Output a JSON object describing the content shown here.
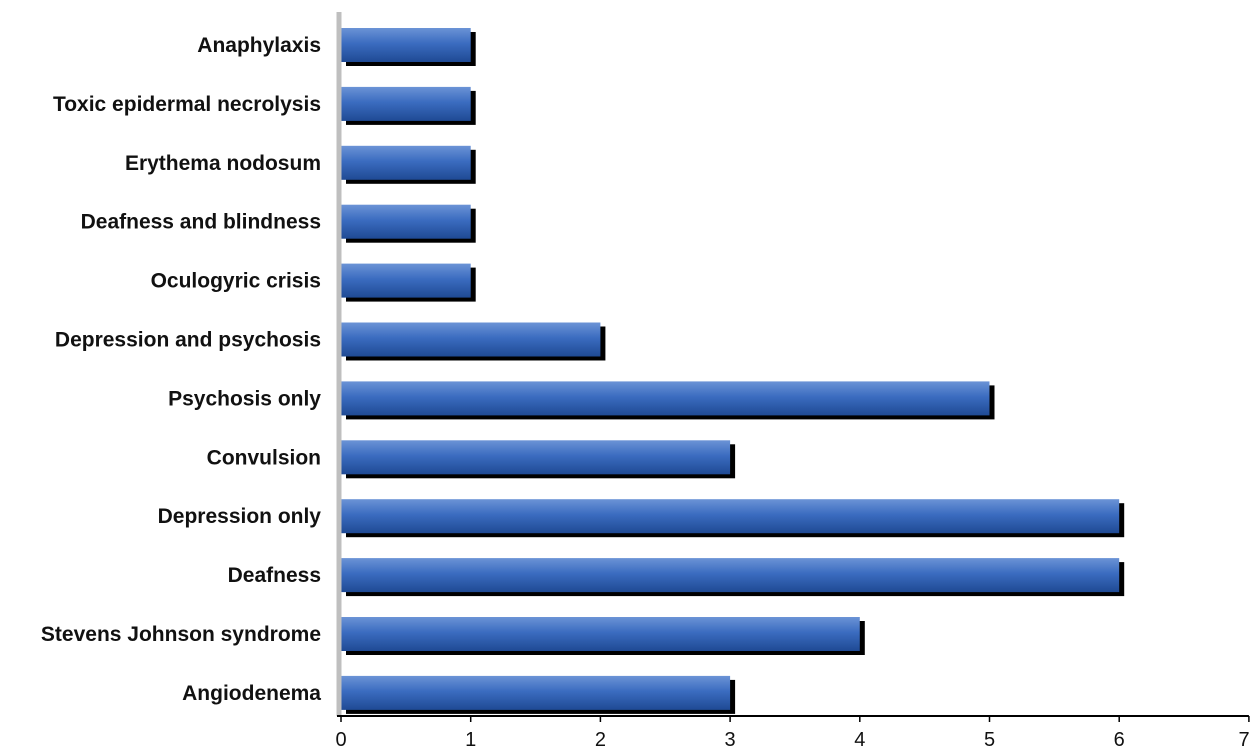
{
  "chart_data": {
    "type": "bar",
    "orientation": "horizontal",
    "categories": [
      "Anaphylaxis",
      "Toxic epidermal necrolysis",
      "Erythema nodosum",
      "Deafness and blindness",
      "Oculogyric crisis",
      "Depression and psychosis",
      "Psychosis only",
      "Convulsion",
      "Depression only",
      "Deafness",
      "Stevens Johnson syndrome",
      "Angiodenema"
    ],
    "values": [
      1,
      1,
      1,
      1,
      1,
      2,
      5,
      3,
      6,
      6,
      4,
      3
    ],
    "x_ticks": [
      "0",
      "1",
      "2",
      "3",
      "4",
      "5",
      "6",
      "7"
    ],
    "xlim": [
      0,
      7
    ],
    "title": "",
    "xlabel": "",
    "ylabel": "",
    "grid": false,
    "legend": "none",
    "colors": {
      "bar_light": "#6b93d6",
      "bar_main": "#3b6cc0",
      "bar_dark": "#1f4a94",
      "shadow": "#000000",
      "category_axis": "#bfbfbf",
      "value_axis": "#000000"
    }
  }
}
